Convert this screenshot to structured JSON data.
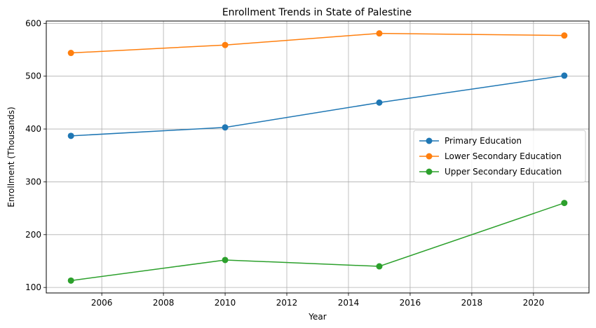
{
  "chart_data": {
    "type": "line",
    "title": "Enrollment Trends in State of Palestine",
    "xlabel": "Year",
    "ylabel": "Enrollment (Thousands)",
    "xlim": [
      2004.2,
      2021.8
    ],
    "ylim": [
      89.6,
      604.4
    ],
    "x_ticks": [
      2006,
      2008,
      2010,
      2012,
      2014,
      2016,
      2018,
      2020
    ],
    "y_ticks": [
      100,
      200,
      300,
      400,
      500,
      600
    ],
    "grid": true,
    "legend_position": "center-right",
    "x": [
      2005,
      2010,
      2015,
      2021
    ],
    "series": [
      {
        "name": "Primary Education",
        "color": "#1f77b4",
        "values": [
          387,
          403,
          450,
          501
        ]
      },
      {
        "name": "Lower Secondary Education",
        "color": "#ff7f0e",
        "values": [
          544,
          559,
          581,
          577
        ]
      },
      {
        "name": "Upper Secondary Education",
        "color": "#2ca02c",
        "values": [
          113,
          152,
          140,
          260
        ]
      }
    ]
  }
}
